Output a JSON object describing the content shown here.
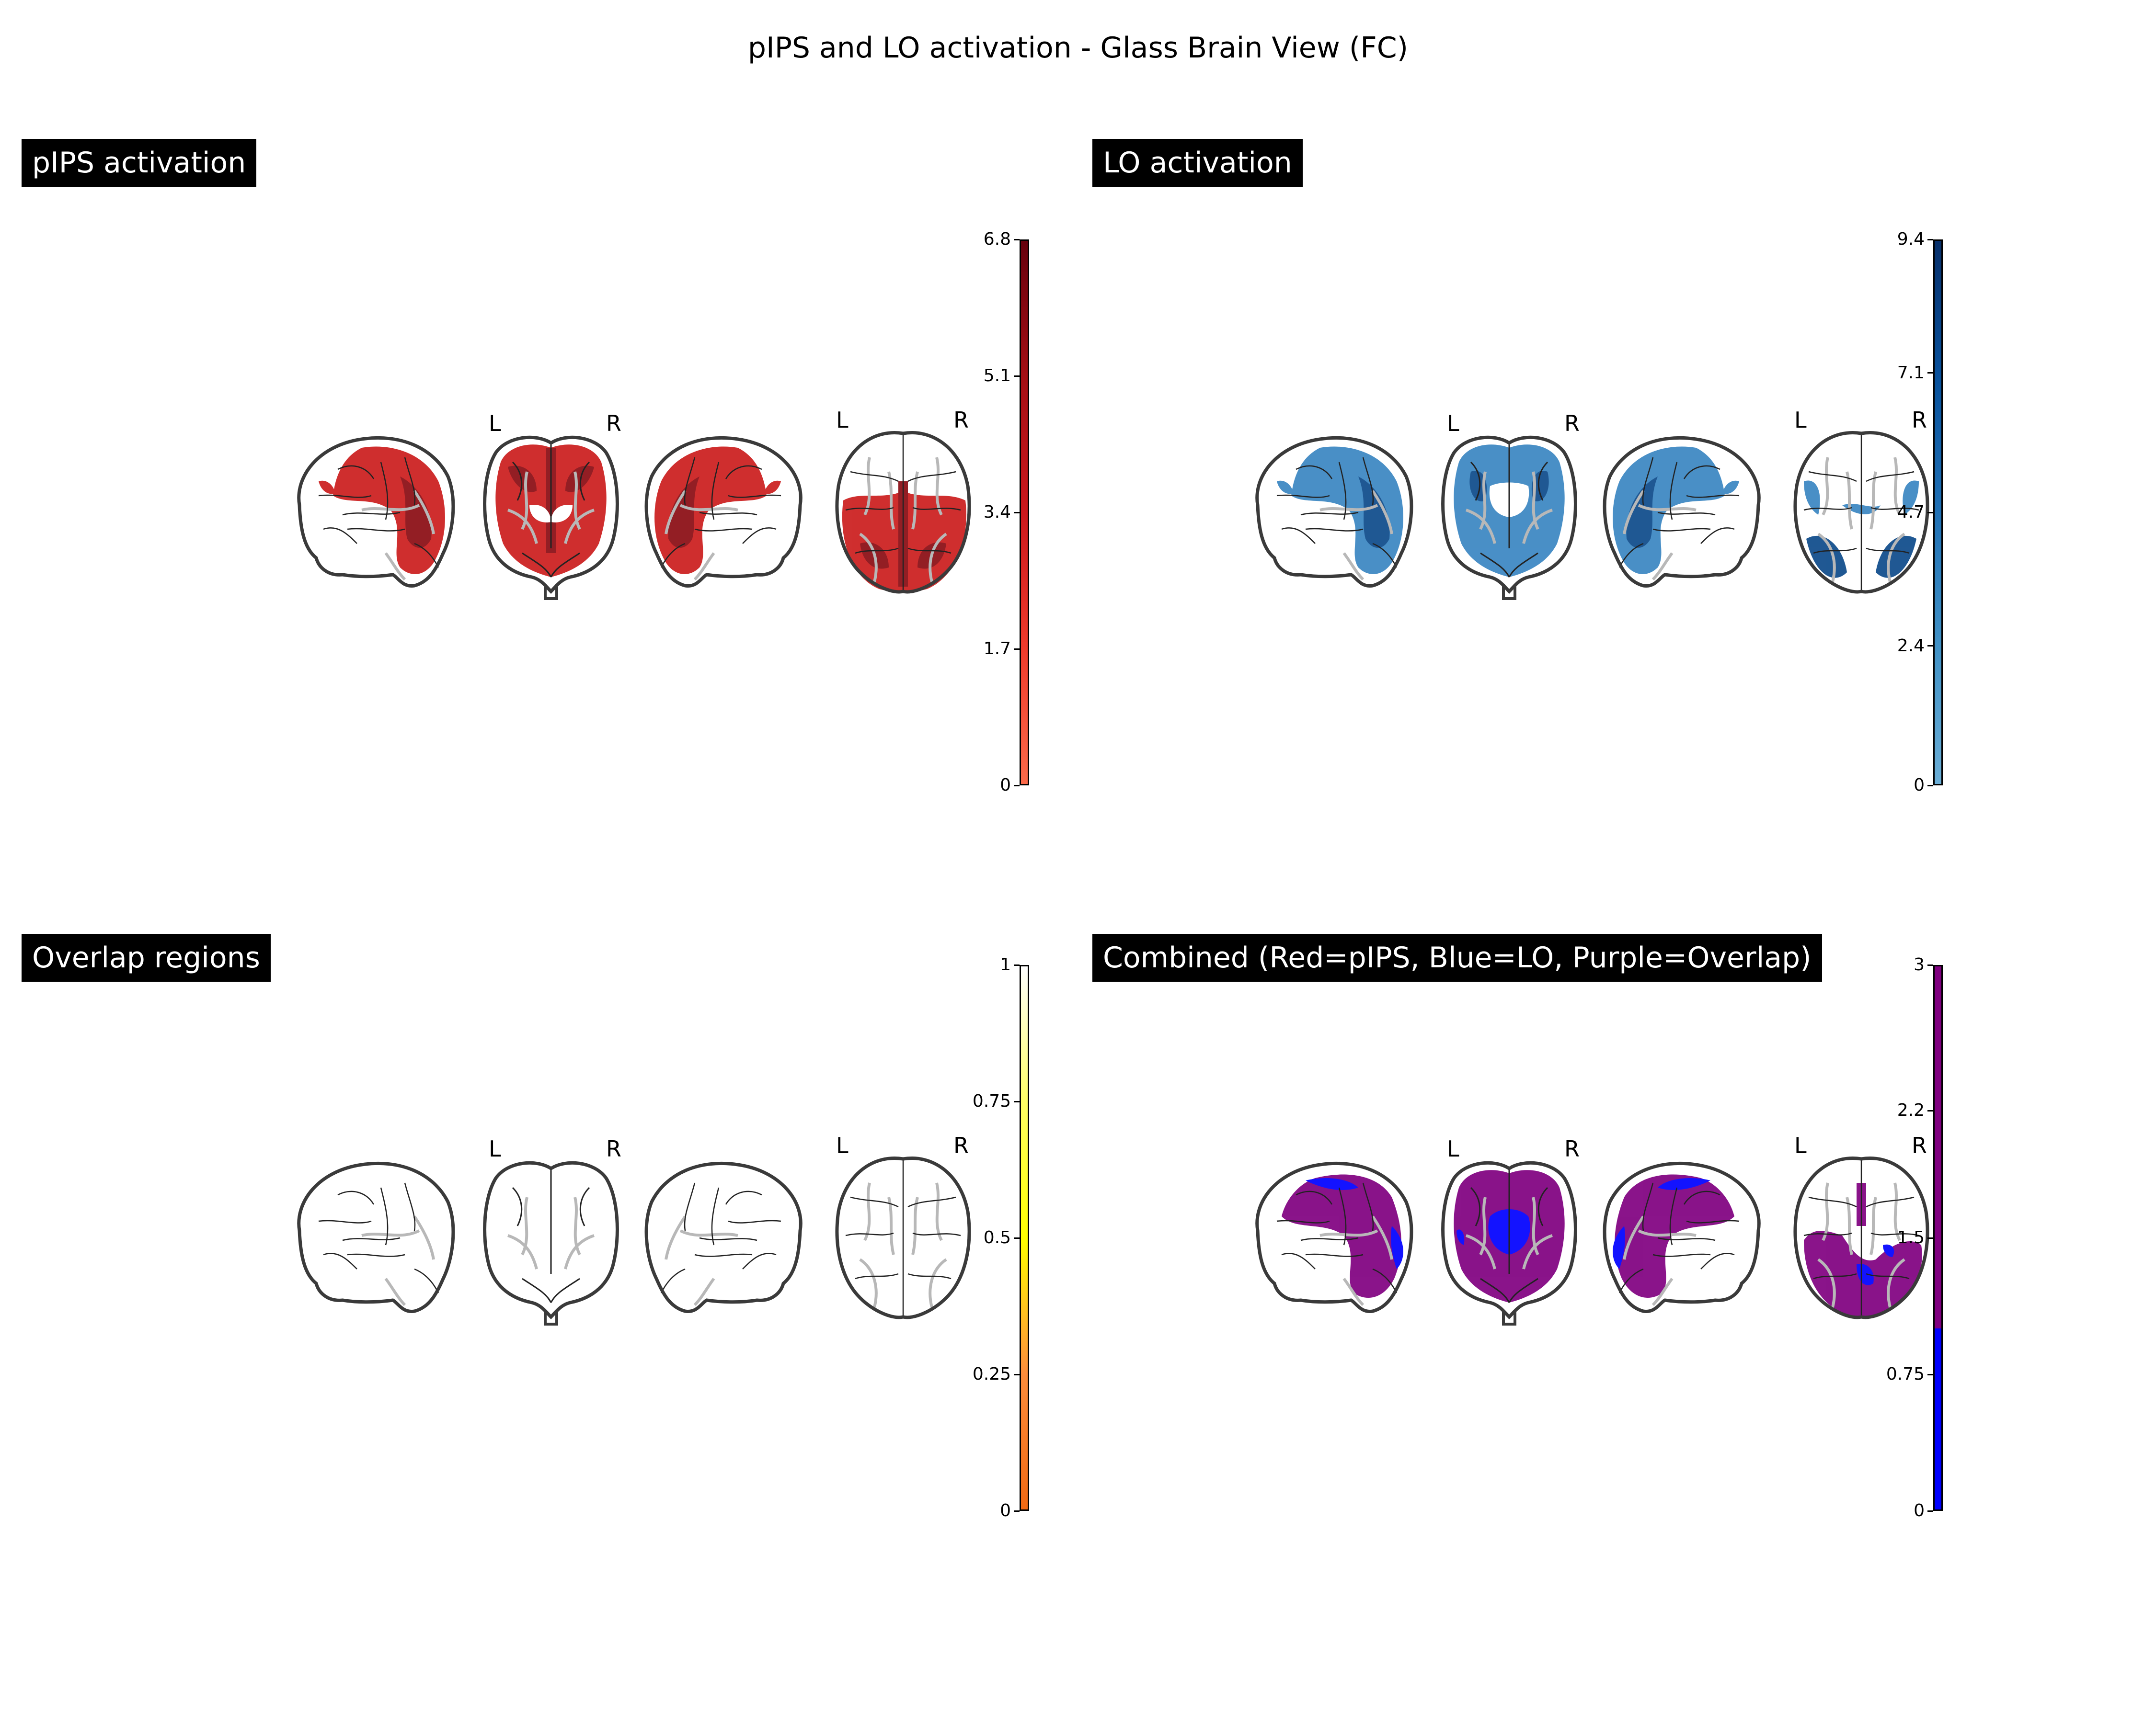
{
  "title": "pIPS and LO activation - Glass Brain View (FC)",
  "hemisphere_labels": {
    "left": "L",
    "right": "R"
  },
  "panels": [
    {
      "id": "pips",
      "title": "pIPS activation",
      "fill_color": "#cb1d1d",
      "fill_dark": "#8a0b12",
      "colorbar": {
        "ticks": [
          "6.8",
          "5.1",
          "3.4",
          "1.7",
          "0"
        ],
        "tick_values": [
          6.8,
          5.1,
          3.4,
          1.7,
          0
        ],
        "vmin": 0,
        "vmax": 6.8,
        "gradient": [
          "#fb6a4a",
          "#ef3b2c",
          "#cb181d",
          "#a50f15",
          "#67000d"
        ]
      }
    },
    {
      "id": "lo",
      "title": "LO activation",
      "fill_color": "#3a86c2",
      "fill_dark": "#0d4a8a",
      "colorbar": {
        "ticks": [
          "9.4",
          "7.1",
          "4.7",
          "2.4",
          "0"
        ],
        "tick_values": [
          9.4,
          7.1,
          4.7,
          2.4,
          0
        ],
        "vmin": 0,
        "vmax": 9.4,
        "gradient": [
          "#6baed6",
          "#4292c6",
          "#2171b5",
          "#08519c",
          "#08306b"
        ]
      }
    },
    {
      "id": "overlap",
      "title": "Overlap regions",
      "fill_color": "none",
      "fill_dark": "none",
      "colorbar": {
        "ticks": [
          "1",
          "0.75",
          "0.5",
          "0.25",
          "0"
        ],
        "tick_values": [
          1,
          0.75,
          0.5,
          0.25,
          0
        ],
        "vmin": 0,
        "vmax": 1,
        "gradient": [
          "#f16913",
          "#fd8d3c",
          "#ffff00",
          "#ffff66",
          "#ffffff"
        ]
      }
    },
    {
      "id": "combined",
      "title": "Combined (Red=pIPS, Blue=LO, Purple=Overlap)",
      "fill_color": "#800080",
      "fill_dark": "#0000ff",
      "colorbar": {
        "ticks": [
          "3",
          "2.2",
          "1.5",
          "0.75",
          "0"
        ],
        "tick_values": [
          3,
          2.2,
          1.5,
          0.75,
          0
        ],
        "vmin": 0,
        "vmax": 3,
        "gradient": [
          "#0000ff",
          "#800080"
        ],
        "split_value": 1
      }
    }
  ]
}
